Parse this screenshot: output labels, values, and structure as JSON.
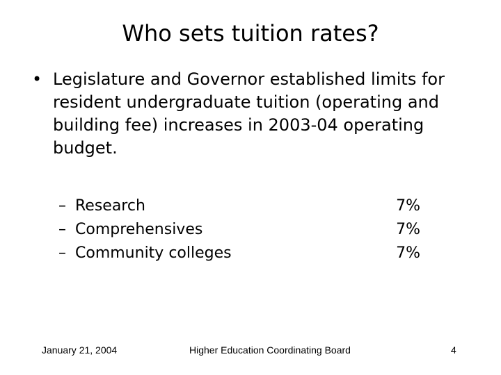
{
  "slide": {
    "title": "Who sets tuition rates?",
    "bullet_symbol": "•",
    "bullet_text": "Legislature and Governor established limits for resident undergraduate tuition (operating and building fee) increases in 2003-04 operating budget.",
    "dash_symbol": "–",
    "items": [
      {
        "label": "Research",
        "value": "7%"
      },
      {
        "label": "Comprehensives",
        "value": "7%"
      },
      {
        "label": "Community colleges",
        "value": "7%"
      }
    ]
  },
  "footer": {
    "date": "January 21, 2004",
    "organization": "Higher Education Coordinating Board",
    "page_number": "4"
  }
}
